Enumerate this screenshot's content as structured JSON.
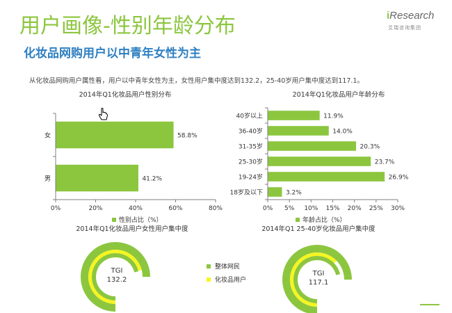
{
  "header": {
    "title": "用户画像-性别年龄分布",
    "subtitle": "化妆品网购用户以中青年女性为主",
    "summary": "从化妆品网购用户属性看，用户以中青年女性为主，女性用户集中度达到132.2，25-40岁用户集中度达到117.1。"
  },
  "logo": {
    "brand_prefix": "i",
    "brand_rest": "Research",
    "sub": "艾瑞咨询集团"
  },
  "colors": {
    "green": "#8cc63f",
    "yellow": "#f5f521",
    "blue": "#2e7fc1",
    "axis": "#7f7f7f"
  },
  "chart_data": [
    {
      "type": "bar",
      "orientation": "horizontal",
      "title": "2014年Q1化妆品用户性别分布",
      "categories": [
        "女",
        "男"
      ],
      "series": [
        {
          "name": "性别占比（%）",
          "values": [
            58.8,
            41.2
          ]
        }
      ],
      "value_labels": [
        "58.8%",
        "41.2%"
      ],
      "xlim": [
        0,
        80
      ],
      "ticks": [
        "0%",
        "20%",
        "40%",
        "60%",
        "80%"
      ],
      "legend": "bottom"
    },
    {
      "type": "bar",
      "orientation": "horizontal",
      "title": "2014年Q1化妆品用户年龄分布",
      "categories": [
        "40岁以上",
        "36-40岁",
        "31-35岁",
        "25-30岁",
        "19-24岁",
        "18岁及以下"
      ],
      "series": [
        {
          "name": "年龄占比（%）",
          "values": [
            11.9,
            14.0,
            20.3,
            23.7,
            26.9,
            3.2
          ]
        }
      ],
      "value_labels": [
        "11.9%",
        "14.0%",
        "20.3%",
        "23.7%",
        "26.9%",
        "3.2%"
      ],
      "xlim": [
        0,
        30
      ],
      "ticks": [
        "0%",
        "5%",
        "10%",
        "15%",
        "20%",
        "25%",
        "30%"
      ],
      "legend": "bottom"
    },
    {
      "type": "pie",
      "title": "2014年Q1化妆品用户女性用户集中度",
      "center_label": "TGI",
      "value": 132.2,
      "value_text": "132.2",
      "legend": [
        "整体网民",
        "化妆品用户"
      ]
    },
    {
      "type": "pie",
      "title": "2014年Q1 25-40岁化妆品用户集中度",
      "center_label": "TGI",
      "value": 117.1,
      "value_text": "117.1"
    }
  ]
}
